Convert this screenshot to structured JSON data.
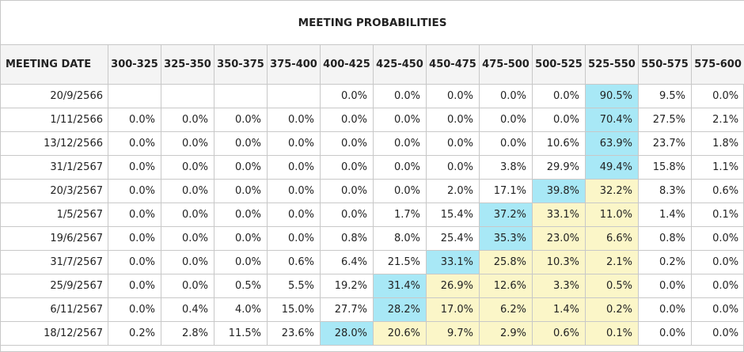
{
  "chart_data": {
    "type": "table",
    "title": "MEETING PROBABILITIES",
    "header": "MEETING DATE",
    "columns": [
      "300-325",
      "325-350",
      "350-375",
      "375-400",
      "400-425",
      "425-450",
      "450-475",
      "475-500",
      "500-525",
      "525-550",
      "550-575",
      "575-600"
    ],
    "rows": [
      {
        "date": "20/9/2566",
        "values": [
          "",
          "",
          "",
          "",
          "0.0%",
          "0.0%",
          "0.0%",
          "0.0%",
          "0.0%",
          "90.5%",
          "9.5%",
          "0.0%"
        ],
        "blue": 9,
        "yellow": []
      },
      {
        "date": "1/11/2566",
        "values": [
          "0.0%",
          "0.0%",
          "0.0%",
          "0.0%",
          "0.0%",
          "0.0%",
          "0.0%",
          "0.0%",
          "0.0%",
          "70.4%",
          "27.5%",
          "2.1%"
        ],
        "blue": 9,
        "yellow": []
      },
      {
        "date": "13/12/2566",
        "values": [
          "0.0%",
          "0.0%",
          "0.0%",
          "0.0%",
          "0.0%",
          "0.0%",
          "0.0%",
          "0.0%",
          "10.6%",
          "63.9%",
          "23.7%",
          "1.8%"
        ],
        "blue": 9,
        "yellow": []
      },
      {
        "date": "31/1/2567",
        "values": [
          "0.0%",
          "0.0%",
          "0.0%",
          "0.0%",
          "0.0%",
          "0.0%",
          "0.0%",
          "3.8%",
          "29.9%",
          "49.4%",
          "15.8%",
          "1.1%"
        ],
        "blue": 9,
        "yellow": []
      },
      {
        "date": "20/3/2567",
        "values": [
          "0.0%",
          "0.0%",
          "0.0%",
          "0.0%",
          "0.0%",
          "0.0%",
          "2.0%",
          "17.1%",
          "39.8%",
          "32.2%",
          "8.3%",
          "0.6%"
        ],
        "blue": 8,
        "yellow": [
          9
        ]
      },
      {
        "date": "1/5/2567",
        "values": [
          "0.0%",
          "0.0%",
          "0.0%",
          "0.0%",
          "0.0%",
          "1.7%",
          "15.4%",
          "37.2%",
          "33.1%",
          "11.0%",
          "1.4%",
          "0.1%"
        ],
        "blue": 7,
        "yellow": [
          8,
          9
        ]
      },
      {
        "date": "19/6/2567",
        "values": [
          "0.0%",
          "0.0%",
          "0.0%",
          "0.0%",
          "0.8%",
          "8.0%",
          "25.4%",
          "35.3%",
          "23.0%",
          "6.6%",
          "0.8%",
          "0.0%"
        ],
        "blue": 7,
        "yellow": [
          8,
          9
        ]
      },
      {
        "date": "31/7/2567",
        "values": [
          "0.0%",
          "0.0%",
          "0.0%",
          "0.6%",
          "6.4%",
          "21.5%",
          "33.1%",
          "25.8%",
          "10.3%",
          "2.1%",
          "0.2%",
          "0.0%"
        ],
        "blue": 6,
        "yellow": [
          7,
          8,
          9
        ]
      },
      {
        "date": "25/9/2567",
        "values": [
          "0.0%",
          "0.0%",
          "0.5%",
          "5.5%",
          "19.2%",
          "31.4%",
          "26.9%",
          "12.6%",
          "3.3%",
          "0.5%",
          "0.0%",
          "0.0%"
        ],
        "blue": 5,
        "yellow": [
          6,
          7,
          8,
          9
        ]
      },
      {
        "date": "6/11/2567",
        "values": [
          "0.0%",
          "0.4%",
          "4.0%",
          "15.0%",
          "27.7%",
          "28.2%",
          "17.0%",
          "6.2%",
          "1.4%",
          "0.2%",
          "0.0%",
          "0.0%"
        ],
        "blue": 5,
        "yellow": [
          6,
          7,
          8,
          9
        ]
      },
      {
        "date": "18/12/2567",
        "values": [
          "0.2%",
          "2.8%",
          "11.5%",
          "23.6%",
          "28.0%",
          "20.6%",
          "9.7%",
          "2.9%",
          "0.6%",
          "0.1%",
          "0.0%",
          "0.0%"
        ],
        "blue": 4,
        "yellow": [
          5,
          6,
          7,
          8,
          9
        ]
      }
    ],
    "colors": {
      "blue": "#a8e8f6",
      "yellow": "#fbf6c8",
      "border": "#c8c8c8",
      "header_bg": "#f4f4f4"
    }
  }
}
